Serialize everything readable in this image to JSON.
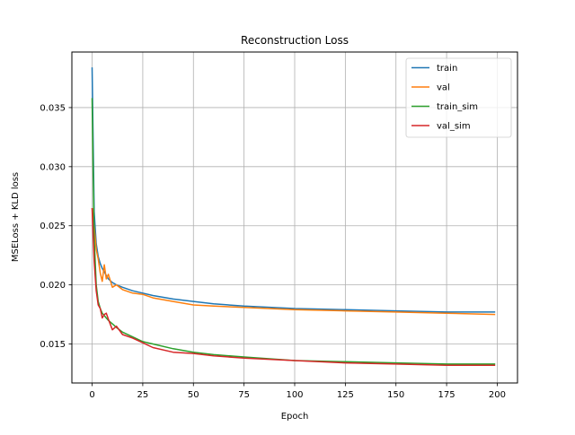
{
  "chart_data": {
    "type": "line",
    "title": "Reconstruction Loss",
    "xlabel": "Epoch",
    "ylabel": "MSELoss + KLD loss",
    "xlim": [
      -10,
      210
    ],
    "ylim": [
      0.0117,
      0.0397
    ],
    "xticks": [
      0,
      25,
      50,
      75,
      100,
      125,
      150,
      175,
      200
    ],
    "xtick_labels": [
      "0",
      "25",
      "50",
      "75",
      "100",
      "125",
      "150",
      "175",
      "200"
    ],
    "yticks": [
      0.015,
      0.02,
      0.025,
      0.03,
      0.035
    ],
    "ytick_labels": [
      "0.015",
      "0.020",
      "0.025",
      "0.030",
      "0.035"
    ],
    "grid": true,
    "legend_position": "top-right",
    "x": [
      0,
      1,
      2,
      3,
      4,
      5,
      6,
      7,
      8,
      10,
      12,
      15,
      20,
      25,
      30,
      40,
      50,
      60,
      75,
      100,
      125,
      150,
      175,
      199
    ],
    "series": [
      {
        "name": "train",
        "color": "#1f77b4",
        "values": [
          0.0384,
          0.0262,
          0.0235,
          0.0224,
          0.0218,
          0.0214,
          0.0211,
          0.0208,
          0.0205,
          0.0202,
          0.02,
          0.0198,
          0.0195,
          0.0193,
          0.0191,
          0.0188,
          0.0186,
          0.0184,
          0.0182,
          0.018,
          0.0179,
          0.0178,
          0.0177,
          0.0177
        ]
      },
      {
        "name": "val",
        "color": "#ff7f0e",
        "values": [
          0.0265,
          0.025,
          0.023,
          0.0222,
          0.021,
          0.0203,
          0.0217,
          0.0205,
          0.0209,
          0.0198,
          0.02,
          0.0196,
          0.0193,
          0.0192,
          0.0189,
          0.0186,
          0.0183,
          0.0182,
          0.0181,
          0.0179,
          0.0178,
          0.0177,
          0.0176,
          0.0175
        ]
      },
      {
        "name": "train_sim",
        "color": "#2ca02c",
        "values": [
          0.0358,
          0.024,
          0.02,
          0.0186,
          0.018,
          0.0176,
          0.0174,
          0.0172,
          0.017,
          0.0167,
          0.0164,
          0.016,
          0.0156,
          0.0152,
          0.015,
          0.0146,
          0.0143,
          0.0141,
          0.0139,
          0.0136,
          0.0135,
          0.0134,
          0.0133,
          0.0133
        ]
      },
      {
        "name": "val_sim",
        "color": "#d62728",
        "values": [
          0.0265,
          0.022,
          0.0195,
          0.0183,
          0.018,
          0.0172,
          0.0175,
          0.0176,
          0.0171,
          0.0162,
          0.0165,
          0.0158,
          0.0155,
          0.0151,
          0.0147,
          0.0143,
          0.0142,
          0.014,
          0.0138,
          0.0136,
          0.0134,
          0.0133,
          0.0132,
          0.0132
        ]
      }
    ]
  }
}
